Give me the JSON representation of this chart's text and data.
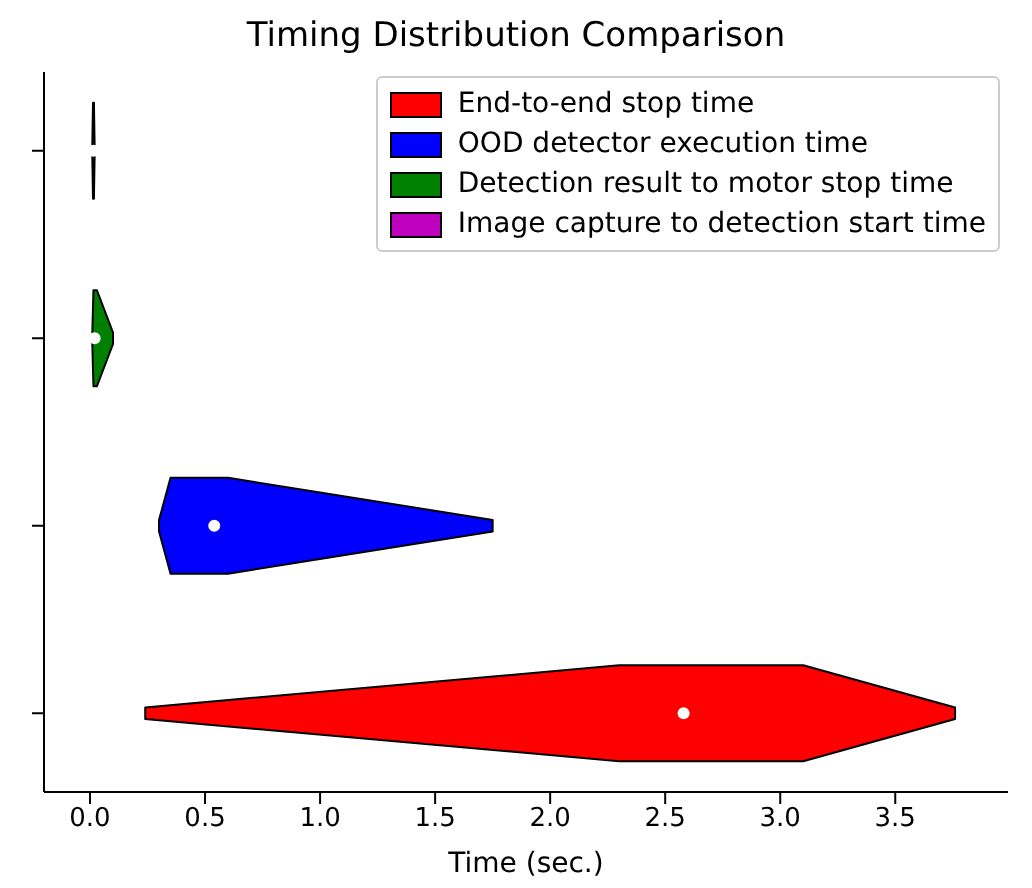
{
  "chart_data": {
    "type": "box",
    "orientation": "horizontal",
    "title": "Timing Distribution Comparison",
    "xlabel": "Time (sec.)",
    "categories": [
      null,
      null,
      null,
      null
    ],
    "xlim": [
      -0.2,
      3.99
    ],
    "xticks": [
      {
        "value": 0,
        "label": "0.0"
      },
      {
        "value": 0.5,
        "label": "0.5"
      },
      {
        "value": 1,
        "label": "1.0"
      },
      {
        "value": 1.5,
        "label": "1.5"
      },
      {
        "value": 2,
        "label": "2.0"
      },
      {
        "value": 2.5,
        "label": "2.5"
      },
      {
        "value": 3,
        "label": "3.0"
      },
      {
        "value": 3.5,
        "label": "3.5"
      }
    ],
    "series": [
      {
        "name": "End-to-end stop time",
        "color": "#ff0000",
        "boxes": [
          null,
          null,
          null,
          {
            "low": 0.24,
            "q1": 2.3,
            "median": 2.58,
            "q3": 3.1,
            "high": 3.76
          }
        ]
      },
      {
        "name": "OOD detector execution time",
        "color": "#0000ff",
        "boxes": [
          null,
          null,
          {
            "low": 0.3,
            "q1": 0.35,
            "median": 0.54,
            "q3": 0.6,
            "high": 1.75
          },
          null
        ]
      },
      {
        "name": "Detection result to motor stop time",
        "color": "#008000",
        "boxes": [
          null,
          {
            "low": 0.01,
            "q1": 0.015,
            "median": 0.02,
            "q3": 0.03,
            "high": 0.1
          },
          null,
          null
        ]
      },
      {
        "name": "Image capture to detection start time",
        "color": "#bf00bf",
        "boxes": [
          {
            "low": 0.01,
            "q1": 0.013,
            "median": 0.015,
            "q3": 0.017,
            "high": 0.02
          },
          null,
          null,
          null
        ]
      }
    ],
    "legend": "top right"
  }
}
